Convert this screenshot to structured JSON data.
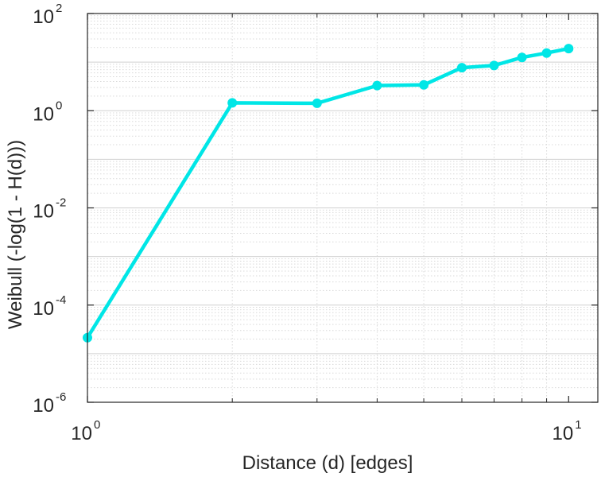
{
  "chart_data": {
    "type": "line",
    "title": "",
    "xlabel": "Distance (d) [edges]",
    "ylabel": "Weibull (-log(1 - H(d)))",
    "xscale": "log",
    "yscale": "log",
    "xlim": [
      1,
      11.5
    ],
    "ylim": [
      1e-06,
      100
    ],
    "grid": true,
    "minor_grid": true,
    "x_ticks": [
      {
        "value": 1,
        "base": "10",
        "exp": "0"
      },
      {
        "value": 10,
        "base": "10",
        "exp": "1"
      }
    ],
    "y_ticks": [
      {
        "value": 100,
        "base": "10",
        "exp": "2"
      },
      {
        "value": 1,
        "base": "10",
        "exp": "0"
      },
      {
        "value": 0.01,
        "base": "10",
        "exp": "-2"
      },
      {
        "value": 0.0001,
        "base": "10",
        "exp": "-4"
      },
      {
        "value": 1e-06,
        "base": "10",
        "exp": "-6"
      }
    ],
    "series": [
      {
        "color": "#00e6e6",
        "marker": "circle",
        "x": [
          1,
          2,
          3,
          4,
          5,
          6,
          7,
          8,
          9,
          10
        ],
        "y": [
          2.14e-05,
          1.45,
          1.42,
          3.3,
          3.4,
          7.7,
          8.5,
          12.5,
          15.4,
          19.0
        ]
      }
    ]
  }
}
